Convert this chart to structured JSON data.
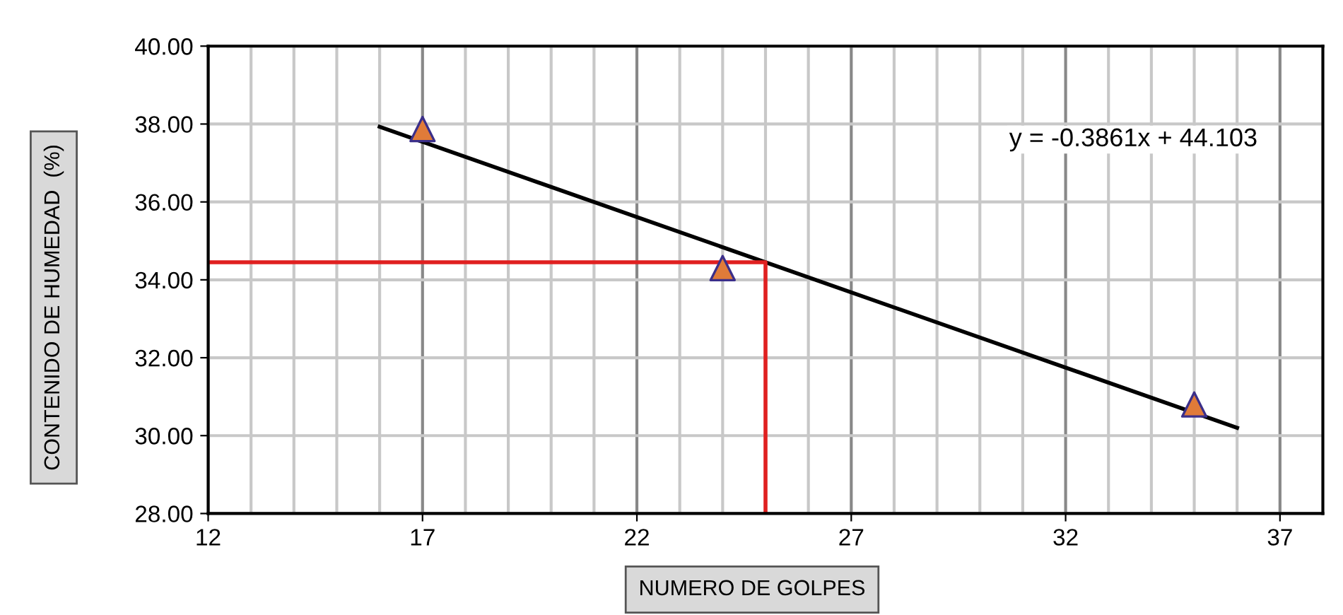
{
  "chart_data": {
    "type": "scatter",
    "xlabel": "NUMERO DE GOLPES",
    "ylabel": "CONTENIDO DE HUMEDAD  (%)",
    "annotations": [
      "y = -0.3861x + 44.103"
    ],
    "xlim": [
      12,
      38
    ],
    "xticks": [
      {
        "value": 12,
        "label": "12"
      },
      {
        "value": 13,
        "label": null
      },
      {
        "value": 14,
        "label": null
      },
      {
        "value": 15,
        "label": null
      },
      {
        "value": 16,
        "label": null
      },
      {
        "value": 17,
        "label": "17"
      },
      {
        "value": 18,
        "label": null
      },
      {
        "value": 19,
        "label": null
      },
      {
        "value": 20,
        "label": null
      },
      {
        "value": 21,
        "label": null
      },
      {
        "value": 22,
        "label": "22"
      },
      {
        "value": 23,
        "label": null
      },
      {
        "value": 24,
        "label": null
      },
      {
        "value": 25,
        "label": null
      },
      {
        "value": 26,
        "label": null
      },
      {
        "value": 27,
        "label": "27"
      },
      {
        "value": 28,
        "label": null
      },
      {
        "value": 29,
        "label": null
      },
      {
        "value": 30,
        "label": null
      },
      {
        "value": 31,
        "label": null
      },
      {
        "value": 32,
        "label": "32"
      },
      {
        "value": 33,
        "label": null
      },
      {
        "value": 34,
        "label": null
      },
      {
        "value": 35,
        "label": null
      },
      {
        "value": 36,
        "label": null
      },
      {
        "value": 37,
        "label": "37"
      }
    ],
    "ylim": [
      28,
      40
    ],
    "yticks": [
      {
        "value": 28,
        "label": "28.00"
      },
      {
        "value": 30,
        "label": "30.00"
      },
      {
        "value": 32,
        "label": "32.00"
      },
      {
        "value": 34,
        "label": "34.00"
      },
      {
        "value": 36,
        "label": "36.00"
      },
      {
        "value": 38,
        "label": "38.00"
      },
      {
        "value": 40,
        "label": "40.00"
      }
    ],
    "grid": true,
    "legend": false,
    "series": [
      {
        "type": "line",
        "color": "#000000",
        "x": [
          16,
          36
        ],
        "values": [
          37.93,
          30.2
        ]
      },
      {
        "type": "line",
        "color": "#e02020",
        "x": [
          12,
          25,
          25
        ],
        "values": [
          34.45,
          34.45,
          28
        ]
      },
      {
        "color": "#e07b39",
        "marker": "triangle",
        "x": [
          17,
          24,
          35
        ],
        "values": [
          37.87,
          34.3,
          30.8
        ]
      }
    ]
  }
}
